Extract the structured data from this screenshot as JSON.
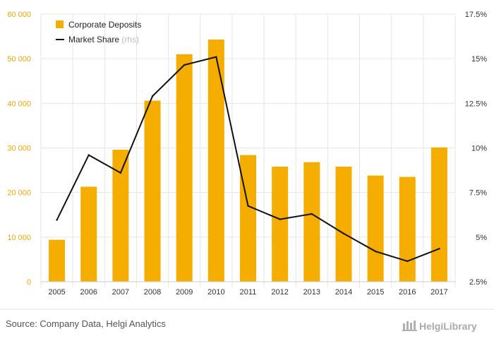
{
  "chart_data": {
    "type": "bar",
    "categories": [
      "2005",
      "2006",
      "2007",
      "2008",
      "2009",
      "2010",
      "2011",
      "2012",
      "2013",
      "2014",
      "2015",
      "2016",
      "2017"
    ],
    "series": [
      {
        "name": "Corporate Deposits",
        "kind": "bar",
        "axis": "left",
        "values": [
          9400,
          21300,
          29600,
          40600,
          51000,
          54300,
          28400,
          25800,
          26800,
          25800,
          23800,
          23500,
          30100
        ]
      },
      {
        "name": "Market Share",
        "name_suffix": "(rhs)",
        "kind": "line",
        "axis": "right",
        "values": [
          5.96,
          9.6,
          8.6,
          12.9,
          14.65,
          15.1,
          6.75,
          6.0,
          6.3,
          5.2,
          4.2,
          3.65,
          4.35
        ]
      }
    ],
    "ylim": [
      0,
      60000
    ],
    "y_ticks": [
      0,
      10000,
      20000,
      30000,
      40000,
      50000,
      60000
    ],
    "y_tick_labels": [
      "0",
      "10 000",
      "20 000",
      "30 000",
      "40 000",
      "50 000",
      "60 000"
    ],
    "y2lim": [
      2.5,
      17.5
    ],
    "y2_ticks": [
      2.5,
      5,
      7.5,
      10,
      12.5,
      15,
      17.5
    ],
    "y2_tick_labels": [
      "2.5%",
      "5%",
      "7.5%",
      "10%",
      "12.5%",
      "15%",
      "17.5%"
    ],
    "legend_position": "top-left",
    "grid": true,
    "colors": {
      "bar": "#f5ae00",
      "line": "#111111",
      "left_axis_text": "#e7a800",
      "grid": "#e6e6e6"
    }
  },
  "footer": {
    "source": "Source: Company Data, Helgi Analytics",
    "brand": "HelgiLibrary"
  }
}
